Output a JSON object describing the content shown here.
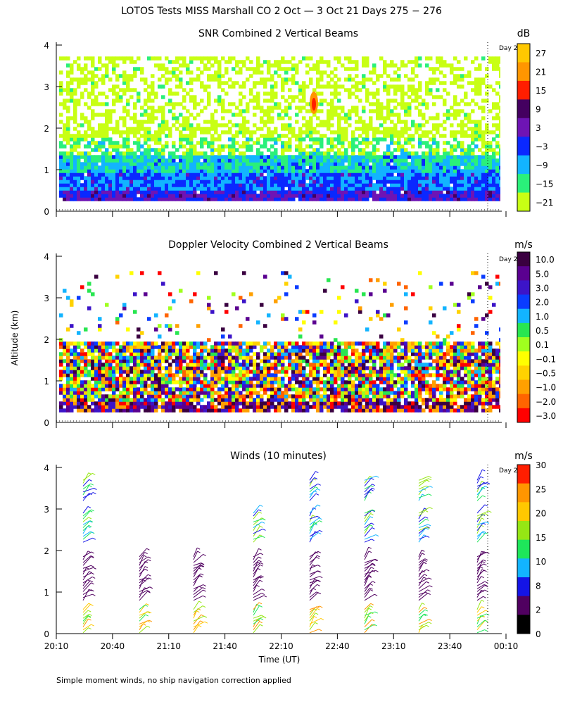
{
  "figure": {
    "title": "LOTOS Tests MISS Marshall CO   2 Oct —  3 Oct 21 Days 275 − 276",
    "ylabel": "Altitude (km)",
    "xlabel": "Time (UT)",
    "footnote": "Simple moment winds, no ship navigation correction applied",
    "day_marker": "Day 2"
  },
  "chart_data": [
    {
      "type": "heatmap",
      "title": "SNR Combined 2 Vertical Beams",
      "units": "dB",
      "x_ticks": [
        "20:10",
        "20:40",
        "21:10",
        "21:40",
        "22:10",
        "22:40",
        "23:10",
        "23:40",
        "00:10"
      ],
      "y_ticks": [
        "0",
        "1",
        "2",
        "3",
        "4"
      ],
      "ylim": [
        0,
        4
      ],
      "colorbar": {
        "labels": [
          "27",
          "21",
          "15",
          "9",
          "3",
          "−3",
          "−9",
          "−15",
          "−21"
        ],
        "colors": [
          "#ffc800",
          "#ff9600",
          "#ff1e00",
          "#440060",
          "#6e14b4",
          "#0a28ff",
          "#12b4ff",
          "#2af07a",
          "#c8ff14"
        ]
      }
    },
    {
      "type": "heatmap",
      "title": "Doppler Velocity Combined 2 Vertical Beams",
      "units": "m/s",
      "x_ticks": [
        "20:10",
        "20:40",
        "21:10",
        "21:40",
        "22:10",
        "22:40",
        "23:10",
        "23:40",
        "00:10"
      ],
      "y_ticks": [
        "0",
        "1",
        "2",
        "3",
        "4"
      ],
      "ylim": [
        0,
        4
      ],
      "colorbar": {
        "labels": [
          "10.0",
          "5.0",
          "3.0",
          "2.0",
          "1.0",
          "0.5",
          "0.1",
          "−0.1",
          "−0.5",
          "−1.0",
          "−2.0",
          "−3.0"
        ],
        "colors": [
          "#3a0040",
          "#5a0090",
          "#3c14c8",
          "#0a3cff",
          "#12b4ff",
          "#28e650",
          "#a0ff1e",
          "#ffff00",
          "#ffd200",
          "#ffa000",
          "#ff6400",
          "#ff0000"
        ]
      }
    },
    {
      "type": "scatter",
      "title": "Winds (10 minutes)",
      "units": "m/s",
      "x_ticks": [
        "20:10",
        "20:40",
        "21:10",
        "21:40",
        "22:10",
        "22:40",
        "23:10",
        "23:40",
        "00:10"
      ],
      "y_ticks": [
        "0",
        "1",
        "2",
        "3",
        "4"
      ],
      "ylim": [
        0,
        4
      ],
      "colorbar": {
        "labels": [
          "30",
          "25",
          "20",
          "15",
          "10",
          "8",
          "2",
          "0"
        ],
        "colors": [
          "#ff1e00",
          "#ff9600",
          "#ffc800",
          "#96e614",
          "#1ee65a",
          "#12b4ff",
          "#1414e6",
          "#500060",
          "#000000"
        ]
      }
    }
  ]
}
